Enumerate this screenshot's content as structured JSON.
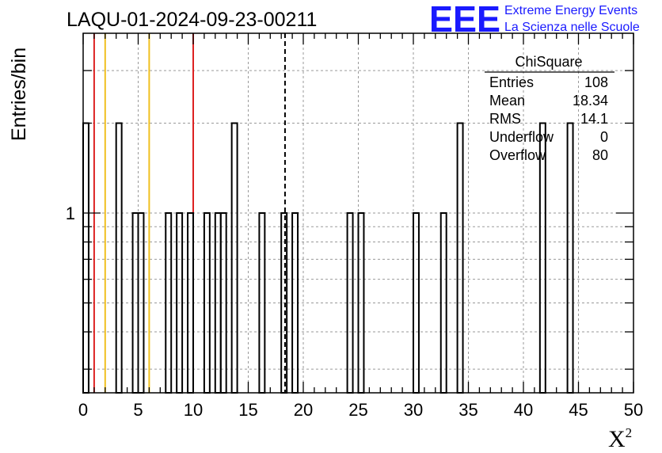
{
  "chart_data": {
    "type": "bar",
    "title": "LAQU-01-2024-09-23-00211",
    "xlabel": "X",
    "xlabel_superscript": "2",
    "ylabel": "Entries/bin",
    "xlim": [
      0,
      50
    ],
    "ylim": [
      0.25,
      4
    ],
    "yscale": "log",
    "grid": true,
    "bin_width": 0.5,
    "x_ticks": [
      "0",
      "5",
      "10",
      "15",
      "20",
      "25",
      "30",
      "35",
      "40",
      "45",
      "50"
    ],
    "y_ticks": [
      "1"
    ],
    "bins": [
      {
        "x": 0.25,
        "count": 2
      },
      {
        "x": 3.25,
        "count": 2
      },
      {
        "x": 4.75,
        "count": 1
      },
      {
        "x": 5.25,
        "count": 1
      },
      {
        "x": 7.75,
        "count": 1
      },
      {
        "x": 8.75,
        "count": 1
      },
      {
        "x": 9.75,
        "count": 1
      },
      {
        "x": 11.25,
        "count": 1
      },
      {
        "x": 12.25,
        "count": 1
      },
      {
        "x": 12.75,
        "count": 1
      },
      {
        "x": 13.75,
        "count": 2
      },
      {
        "x": 16.25,
        "count": 1
      },
      {
        "x": 18.25,
        "count": 1
      },
      {
        "x": 19.25,
        "count": 1
      },
      {
        "x": 24.25,
        "count": 1
      },
      {
        "x": 25.25,
        "count": 1
      },
      {
        "x": 30.25,
        "count": 1
      },
      {
        "x": 32.75,
        "count": 1
      },
      {
        "x": 34.25,
        "count": 2
      },
      {
        "x": 41.75,
        "count": 2
      },
      {
        "x": 44.25,
        "count": 2
      }
    ],
    "reference_lines": [
      {
        "x": 1.0,
        "color": "#dd2222",
        "style": "solid"
      },
      {
        "x": 2.0,
        "color": "#f0c020",
        "style": "solid"
      },
      {
        "x": 6.0,
        "color": "#f0c020",
        "style": "solid"
      },
      {
        "x": 10.0,
        "color": "#dd2222",
        "style": "solid"
      },
      {
        "x": 18.34,
        "color": "#000000",
        "style": "dashed"
      }
    ],
    "stats_box": {
      "title": "ChiSquare",
      "rows": [
        {
          "label": "Entries",
          "value": "108"
        },
        {
          "label": "Mean",
          "value": "18.34"
        },
        {
          "label": "RMS",
          "value": "14.1"
        },
        {
          "label": "Underflow",
          "value": "0"
        },
        {
          "label": "Overflow",
          "value": "80"
        }
      ]
    }
  },
  "logo": {
    "mark": "EEE",
    "line1": "Extreme Energy Events",
    "line2": "La Scienza nelle Scuole",
    "color": "#1a1aff"
  }
}
